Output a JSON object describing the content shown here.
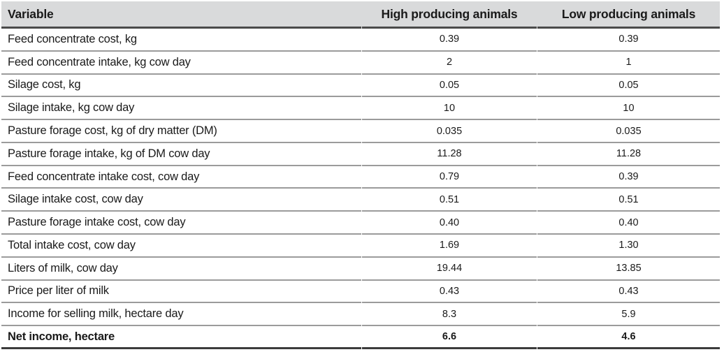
{
  "table": {
    "columns": [
      {
        "key": "variable",
        "label": "Variable"
      },
      {
        "key": "high",
        "label": "High producing animals"
      },
      {
        "key": "low",
        "label": "Low producing animals"
      }
    ],
    "rows": [
      {
        "variable": "Feed concentrate cost, kg",
        "high": "0.39",
        "low": "0.39",
        "bold": false
      },
      {
        "variable": "Feed concentrate intake, kg cow day",
        "high": "2",
        "low": "1",
        "bold": false
      },
      {
        "variable": "Silage cost, kg",
        "high": "0.05",
        "low": "0.05",
        "bold": false
      },
      {
        "variable": "Silage intake, kg cow day",
        "high": "10",
        "low": "10",
        "bold": false
      },
      {
        "variable": "Pasture forage cost, kg of dry matter (DM)",
        "high": "0.035",
        "low": "0.035",
        "bold": false
      },
      {
        "variable": "Pasture forage intake, kg of DM cow day",
        "high": "11.28",
        "low": "11.28",
        "bold": false
      },
      {
        "variable": "Feed concentrate intake cost, cow day",
        "high": "0.79",
        "low": "0.39",
        "bold": false
      },
      {
        "variable": "Silage intake cost, cow day",
        "high": "0.51",
        "low": "0.51",
        "bold": false
      },
      {
        "variable": "Pasture forage intake cost, cow day",
        "high": "0.40",
        "low": "0.40",
        "bold": false
      },
      {
        "variable": "Total intake cost, cow day",
        "high": "1.69",
        "low": "1.30",
        "bold": false
      },
      {
        "variable": "Liters of milk, cow day",
        "high": "19.44",
        "low": "13.85",
        "bold": false
      },
      {
        "variable": "Price per liter of milk",
        "high": "0.43",
        "low": "0.43",
        "bold": false
      },
      {
        "variable": "Income for selling milk, hectare day",
        "high": "8.3",
        "low": "5.9",
        "bold": false
      },
      {
        "variable": "Net income, hectare",
        "high": "6.6",
        "low": "4.6",
        "bold": true
      }
    ]
  },
  "colors": {
    "header_background": "#d9dadb",
    "header_rule": "#4a4a4a",
    "row_rule": "#9b9b9b",
    "bottom_rule": "#3c3c3c",
    "text": "#1a1a1a"
  }
}
